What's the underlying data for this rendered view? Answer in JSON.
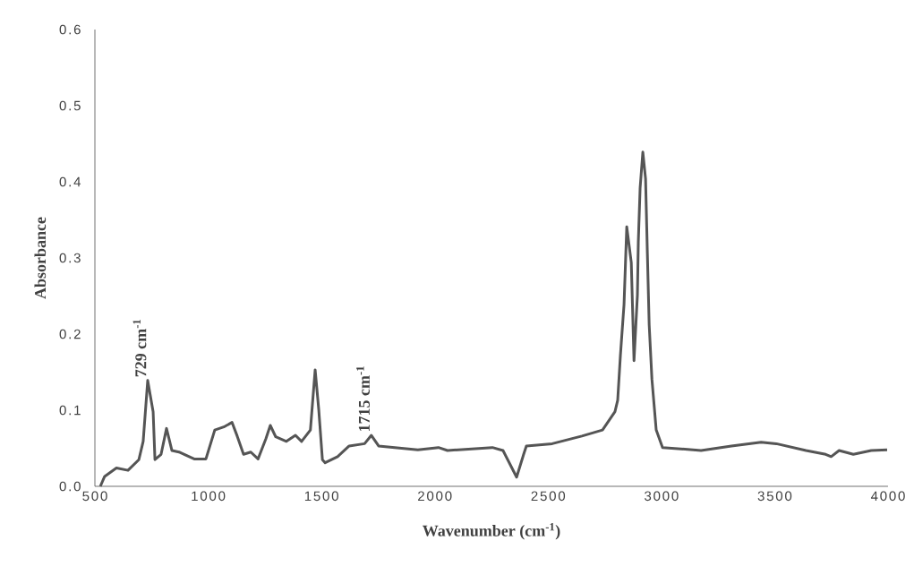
{
  "chart_data": {
    "type": "line",
    "xlabel": "Wavenumber (cm$^{-1}$)",
    "ylabel": "Absorbance",
    "xlim": [
      500,
      4000
    ],
    "ylim": [
      0,
      0.6
    ],
    "xticks": [
      500,
      1000,
      1500,
      2000,
      2500,
      3000,
      3500,
      4000
    ],
    "yticks": [
      {
        "value": 0,
        "label": "0.0"
      },
      0.1,
      0.2,
      0.3,
      0.4,
      0.5,
      0.6
    ],
    "grid": false,
    "legend": false,
    "marker": "none",
    "line_style": "solid",
    "annotations": [
      {
        "text": "729 cm$^{-1}$",
        "x": 729,
        "y": 0.139
      },
      {
        "text": "1715 cm$^{-1}$",
        "x": 1715,
        "y": 0.067
      }
    ],
    "series": [
      {
        "color": "#555555",
        "x": [
          524,
          543,
          595,
          646,
          694,
          713,
          733,
          757,
          765,
          792,
          816,
          840,
          871,
          938,
          990,
          1029,
          1069,
          1105,
          1128,
          1156,
          1188,
          1220,
          1254,
          1274,
          1298,
          1345,
          1385,
          1412,
          1451,
          1472,
          1488,
          1504,
          1516,
          1571,
          1622,
          1690,
          1720,
          1752,
          1925,
          2016,
          2056,
          2254,
          2301,
          2361,
          2392,
          2404,
          2518,
          2649,
          2740,
          2795,
          2807,
          2819,
          2835,
          2847,
          2867,
          2879,
          2894,
          2898,
          2906,
          2918,
          2930,
          2938,
          2946,
          2958,
          2977,
          3005,
          3175,
          3309,
          3440,
          3507,
          3638,
          3725,
          3749,
          3784,
          3847,
          3926,
          3996
        ],
        "values": [
          0.0,
          0.013,
          0.024,
          0.021,
          0.035,
          0.059,
          0.139,
          0.098,
          0.035,
          0.042,
          0.076,
          0.047,
          0.045,
          0.036,
          0.036,
          0.074,
          0.078,
          0.084,
          0.066,
          0.042,
          0.045,
          0.036,
          0.062,
          0.08,
          0.065,
          0.059,
          0.067,
          0.059,
          0.074,
          0.153,
          0.1,
          0.035,
          0.031,
          0.039,
          0.053,
          0.056,
          0.067,
          0.053,
          0.048,
          0.051,
          0.047,
          0.051,
          0.047,
          0.012,
          0.042,
          0.053,
          0.056,
          0.066,
          0.074,
          0.098,
          0.113,
          0.172,
          0.239,
          0.341,
          0.294,
          0.165,
          0.251,
          0.321,
          0.392,
          0.439,
          0.404,
          0.306,
          0.212,
          0.141,
          0.074,
          0.051,
          0.047,
          0.053,
          0.058,
          0.056,
          0.047,
          0.042,
          0.039,
          0.047,
          0.042,
          0.047,
          0.048
        ]
      }
    ]
  }
}
